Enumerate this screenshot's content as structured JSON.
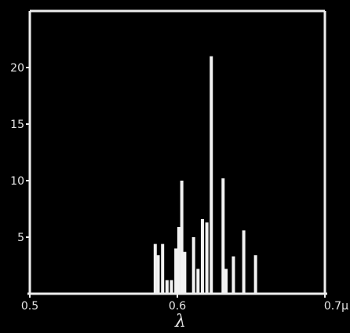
{
  "chart_data": {
    "type": "bar",
    "title": "",
    "xlabel": "λ",
    "ylabel": "",
    "x_unit": "μ",
    "xlim": [
      0.5,
      0.7
    ],
    "ylim": [
      0,
      25
    ],
    "x_ticks": [
      {
        "value": 0.5,
        "label": "0.5"
      },
      {
        "value": 0.6,
        "label": "0.6"
      },
      {
        "value": 0.7,
        "label": "0.7μ"
      }
    ],
    "y_ticks": [
      {
        "value": 5,
        "label": "5"
      },
      {
        "value": 10,
        "label": "10"
      },
      {
        "value": 15,
        "label": "15"
      },
      {
        "value": 20,
        "label": "20"
      }
    ],
    "x": [
      0.585,
      0.587,
      0.59,
      0.593,
      0.596,
      0.599,
      0.601,
      0.603,
      0.605,
      0.611,
      0.614,
      0.617,
      0.62,
      0.623,
      0.631,
      0.633,
      0.638,
      0.645,
      0.653
    ],
    "values": [
      4.4,
      3.4,
      4.4,
      1.2,
      1.2,
      4.0,
      5.9,
      10.0,
      3.7,
      5.0,
      2.2,
      6.6,
      6.3,
      21.0,
      10.2,
      2.2,
      3.3,
      5.6,
      3.4
    ],
    "color": "#f2f2f2",
    "background": "#000000",
    "grid": false,
    "legend": "none"
  }
}
